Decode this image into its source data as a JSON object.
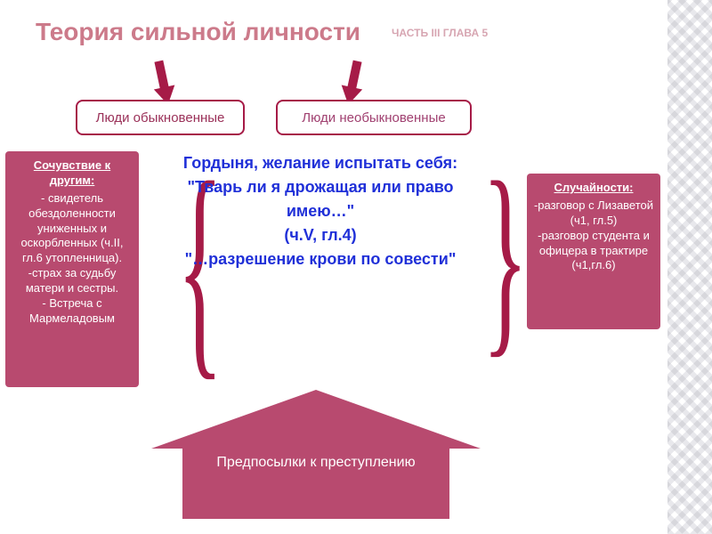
{
  "colors": {
    "title": "#cc7a8a",
    "subtitle": "#d7a6b2",
    "magenta": "#a61b47",
    "box_fill": "#b84a6f",
    "center_text": "#2030d8",
    "pill_text_l": "#9a3058",
    "pill_text_r": "#a04070"
  },
  "title": "Теория сильной личности",
  "subtitle": "ЧАСТЬ III ГЛАВА 5",
  "pills": {
    "left": "Люди обыкновенные",
    "right": "Люди необыкновенные"
  },
  "left_box": {
    "heading": "Сочувствие к другим:",
    "body": "- свидетель обездоленности униженных и оскорбленных (ч.II, гл.6 утопленница).\n-страх за судьбу матери и сестры.\n- Встреча с Мармеладовым"
  },
  "right_box": {
    "heading": "Случайности:",
    "body": "-разговор с Лизаветой (ч1, гл.5)\n-разговор студента и офицера в трактире (ч1,гл.6)"
  },
  "center": {
    "l1": "Гордыня, желание испытать себя:",
    "l2": "\"Тварь ли я дрожащая или право имею…\"",
    "l3": "(ч.V, гл.4)",
    "l4": "\"…разрешение крови по совести\""
  },
  "big_arrow_label": "Предпосылки к преступлению"
}
